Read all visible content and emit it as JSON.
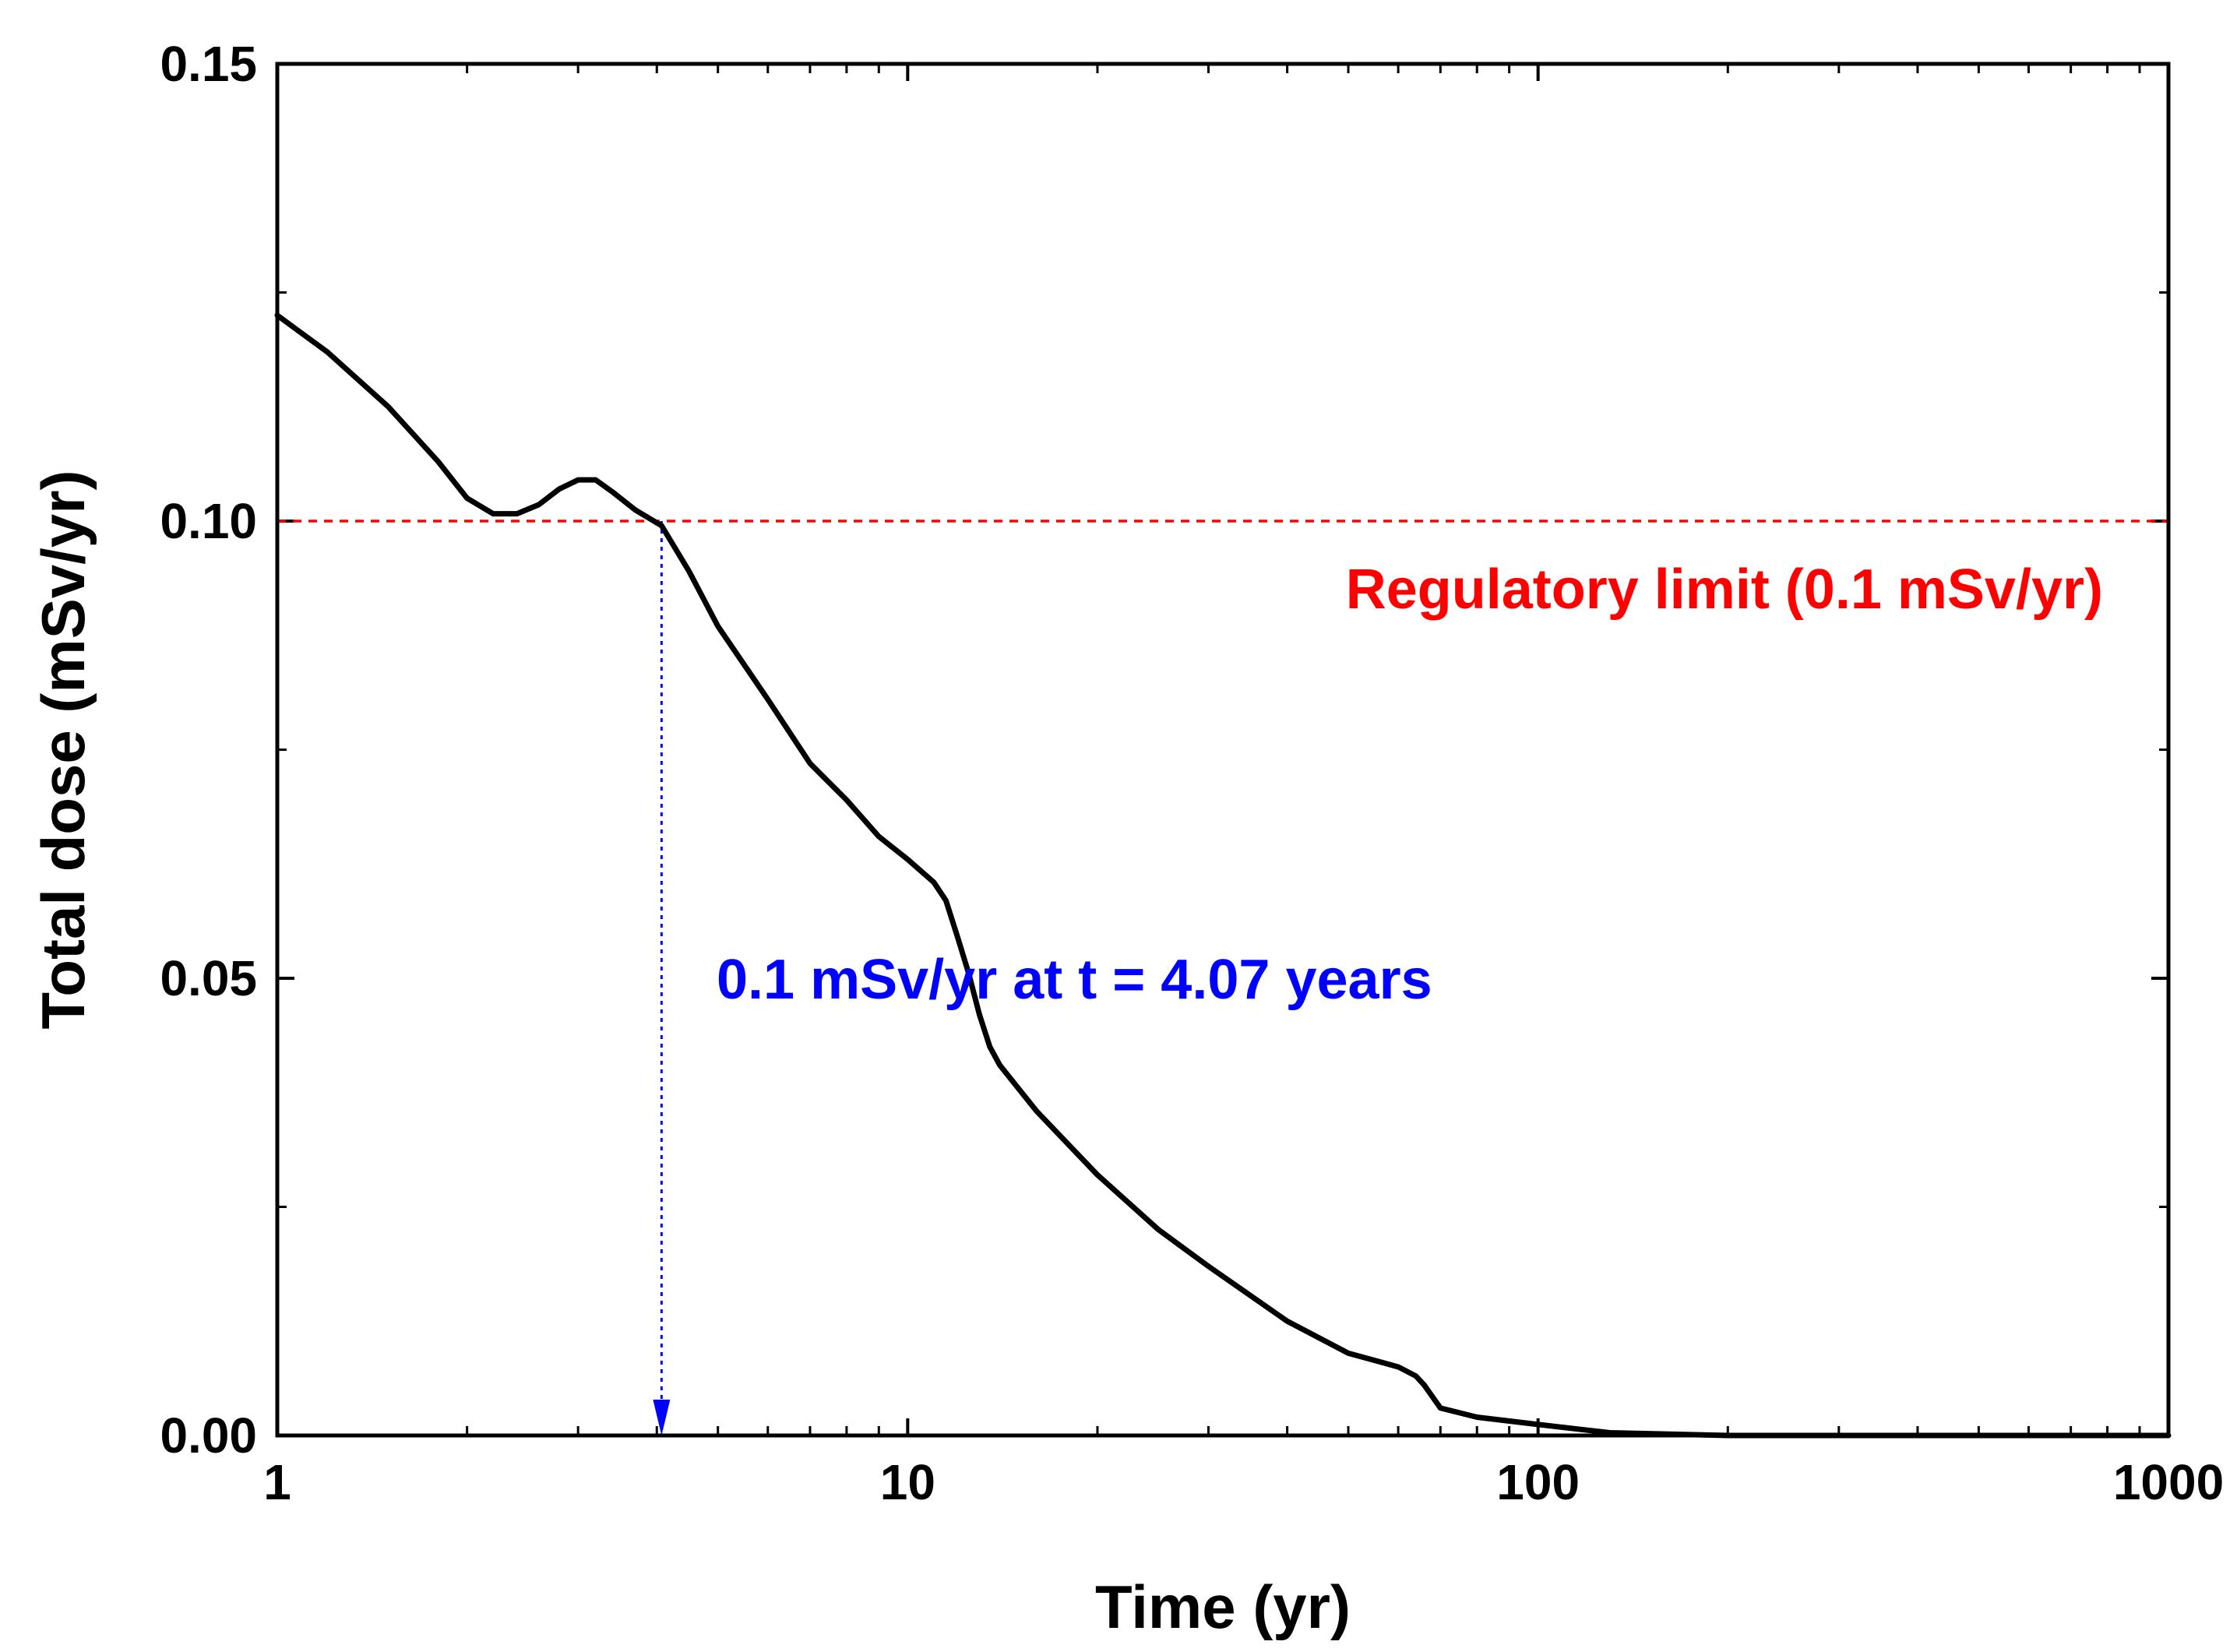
{
  "chart_data": {
    "type": "line",
    "title": "",
    "xlabel": "Time (yr)",
    "ylabel": "Total dose (mSv/yr)",
    "xscale": "log",
    "xlim": [
      1,
      1000
    ],
    "ylim": [
      0,
      0.15
    ],
    "xticks": [
      1,
      10,
      100,
      1000
    ],
    "xtick_labels": [
      "1",
      "10",
      "100",
      "1000"
    ],
    "yticks": [
      0.0,
      0.05,
      0.1,
      0.15
    ],
    "ytick_labels": [
      "0.00",
      "0.05",
      "0.10",
      "0.15"
    ],
    "grid": false,
    "series": [
      {
        "name": "Total dose",
        "color": "#000000",
        "x": [
          1.0,
          1.2,
          1.5,
          1.8,
          2.0,
          2.2,
          2.4,
          2.6,
          2.8,
          3.0,
          3.2,
          3.4,
          3.7,
          4.07,
          4.5,
          5.0,
          6.0,
          7.0,
          8.0,
          9.0,
          10.0,
          11.0,
          11.5,
          12.0,
          12.5,
          13.0,
          13.5,
          14.0,
          16.0,
          20.0,
          25.0,
          30.0,
          40.0,
          50.0,
          60.0,
          64.0,
          66.0,
          70.0,
          80.0,
          100.0,
          130.0,
          200.0,
          300.0,
          500.0,
          1000.0
        ],
        "y": [
          0.1225,
          0.1185,
          0.1125,
          0.1065,
          0.1025,
          0.1008,
          0.1008,
          0.1018,
          0.1035,
          0.1045,
          0.1045,
          0.1032,
          0.1012,
          0.0995,
          0.0945,
          0.0885,
          0.0805,
          0.0735,
          0.0695,
          0.0655,
          0.063,
          0.0605,
          0.0585,
          0.0545,
          0.0505,
          0.046,
          0.0425,
          0.0405,
          0.0355,
          0.0285,
          0.0225,
          0.0185,
          0.0125,
          0.009,
          0.0075,
          0.0065,
          0.0055,
          0.003,
          0.002,
          0.0012,
          0.0003,
          0.0,
          0.0,
          0.0,
          0.0
        ]
      }
    ],
    "reference_line": {
      "y": 0.1,
      "label": "Regulatory limit (0.1 mSv/yr)",
      "color": "#ff0000",
      "style": "dashed"
    },
    "annotation": {
      "text": "0.1 mSv/yr at t = 4.07 years",
      "x": 4.07,
      "color": "#0000ff",
      "style": "dotted arrow"
    }
  }
}
